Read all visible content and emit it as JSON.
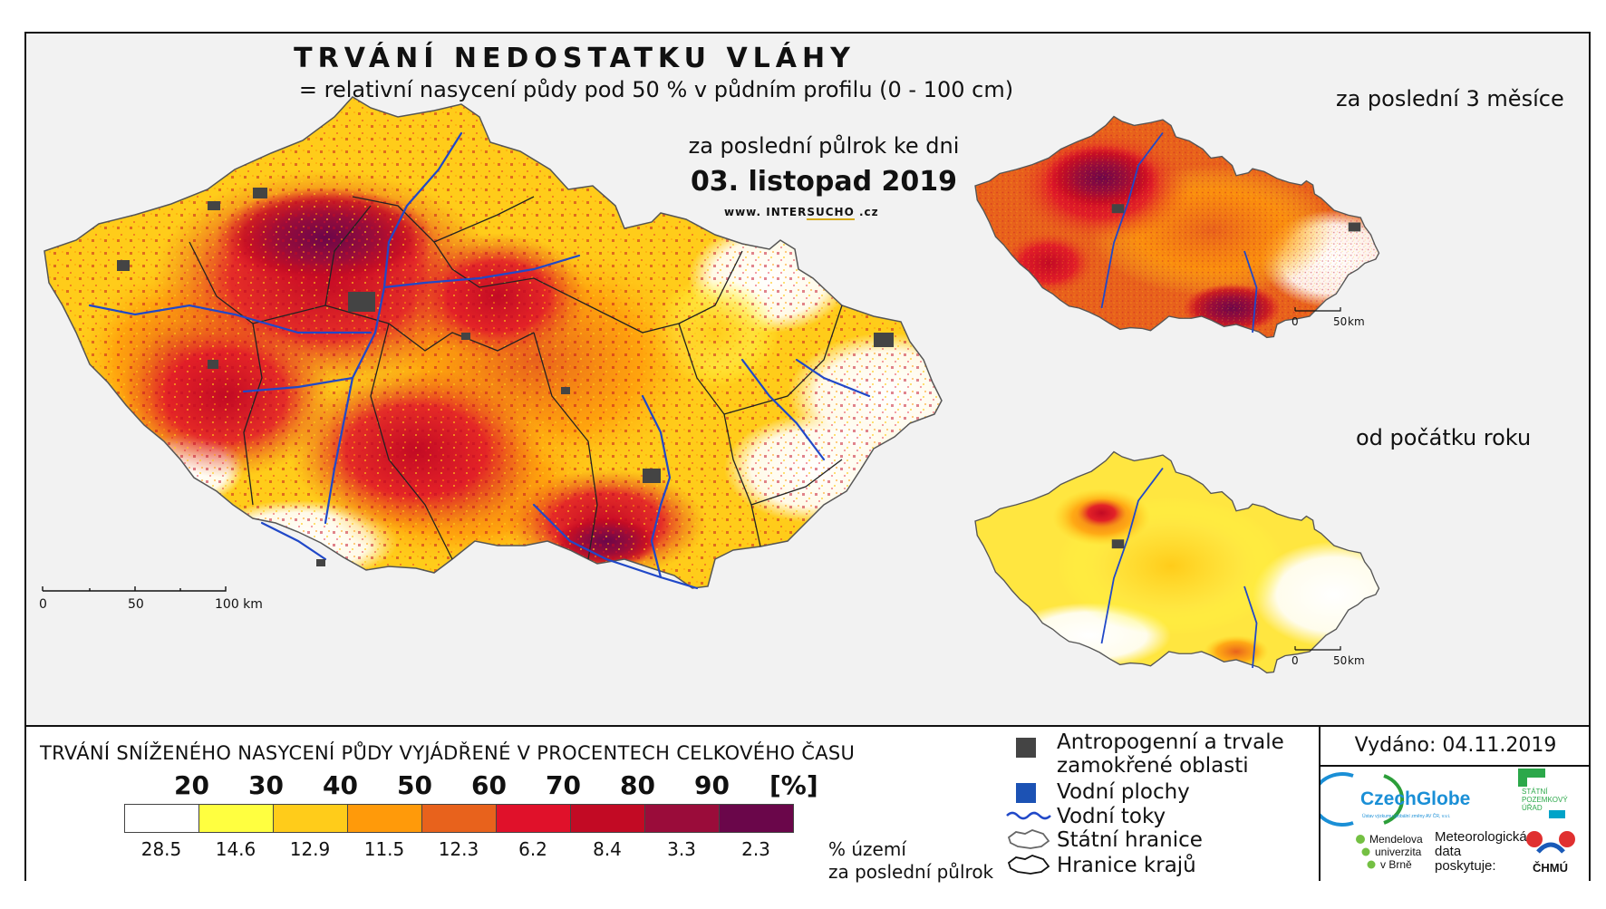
{
  "title": "TRVÁNÍ NEDOSTATKU VLÁHY",
  "subtitle": "= relativní nasycení půdy pod 50 % v půdním profilu (0 - 100 cm)",
  "main_map": {
    "period_label": "za poslední půlrok ke dni",
    "date_label": "03. listopad 2019",
    "website": {
      "prefix": "www. INTER",
      "highlight": "SUCHO",
      "suffix": " .cz"
    },
    "scalebar": [
      "0",
      "50",
      "100 km"
    ]
  },
  "insets": [
    {
      "title": "za poslední 3 měsíce",
      "scalebar": [
        "0",
        "50",
        "km"
      ]
    },
    {
      "title": "od počátku roku",
      "scalebar": [
        "0",
        "50",
        "km"
      ]
    }
  ],
  "legend": {
    "title": "TRVÁNÍ SNÍŽENÉHO NASYCENÍ PŮDY VYJÁDŘENÉ V PROCENTECH CELKOVÉHO ČASU",
    "thresholds": [
      "20",
      "30",
      "40",
      "50",
      "60",
      "70",
      "80",
      "90"
    ],
    "unit": "[%]",
    "classes": [
      {
        "color": "#ffffff",
        "area_pct": "28.5"
      },
      {
        "color": "#ffff40",
        "area_pct": "14.6"
      },
      {
        "color": "#ffcc1a",
        "area_pct": "12.9"
      },
      {
        "color": "#ff9a0a",
        "area_pct": "11.5"
      },
      {
        "color": "#e8621c",
        "area_pct": "12.3"
      },
      {
        "color": "#e0112a",
        "area_pct": "6.2"
      },
      {
        "color": "#c20a24",
        "area_pct": "8.4"
      },
      {
        "color": "#9a0c3a",
        "area_pct": "3.3"
      },
      {
        "color": "#6a064a",
        "area_pct": "2.3"
      }
    ],
    "area_note_line1": "% území",
    "area_note_line2": "za poslední půlrok"
  },
  "map_key": {
    "anthropogenic_line1": "Antropogenní a trvale",
    "anthropogenic_line2": "zamokřené oblasti",
    "water_bodies": "Vodní plochy",
    "rivers": "Vodní toky",
    "state_border": "Státní hranice",
    "region_border": "Hranice krajů",
    "colors": {
      "anthropogenic": "#444444",
      "water": "#1c52b4",
      "river": "#2048c8"
    }
  },
  "info": {
    "issued": "Vydáno: 04.11.2019",
    "czechglobe": "CzechGlobe",
    "czechglobe_sub": "Ústav výzkumu globální změny AV ČR, v.v.i.",
    "spu_line1": "STÁTNÍ",
    "spu_line2": "POZEMKOVÝ",
    "spu_line3": "ÚŘAD",
    "mendel_line1": "Mendelova",
    "mendel_line2": "univerzita",
    "mendel_line3": "v Brně",
    "meteo_line1": "Meteorologická",
    "meteo_line2": "data",
    "meteo_line3": "poskytuje:",
    "chmu": "ČHMÚ"
  }
}
